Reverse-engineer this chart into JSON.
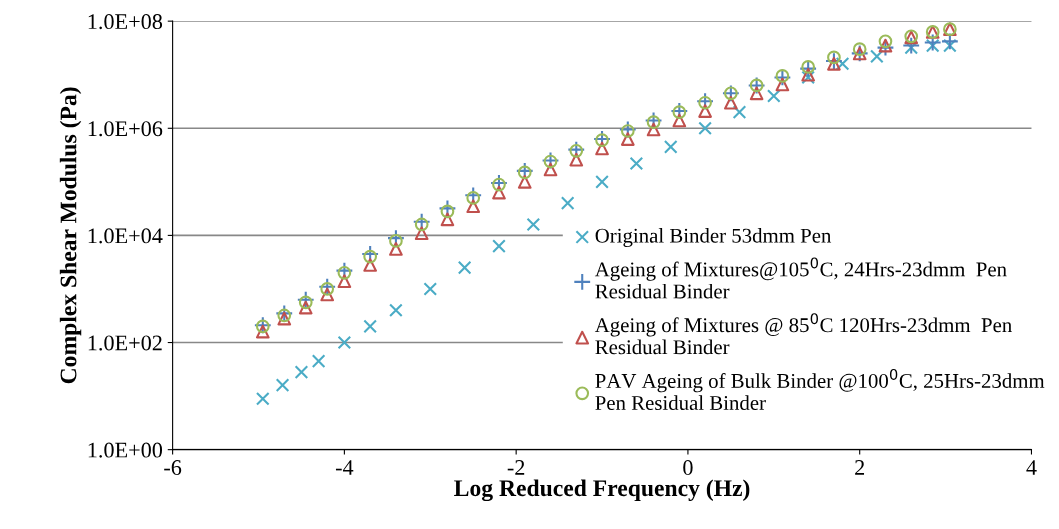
{
  "chart_data": {
    "type": "scatter",
    "xlabel": "Log Reduced Frequency (Hz)",
    "ylabel": "Complex Shear Modulus (Pa)",
    "log": "y",
    "grid": "y",
    "legend": "right",
    "xlim": [
      -6,
      4
    ],
    "xticks": [
      -6,
      -4,
      -2,
      0,
      2,
      4
    ],
    "ylim": [
      1,
      100000000
    ],
    "yticks": [
      {
        "value": 1,
        "label": "1.0E+00"
      },
      {
        "value": 100,
        "label": "1.0E+02"
      },
      {
        "value": 10000,
        "label": "1.0E+04"
      },
      {
        "value": 1000000,
        "label": "1.0E+06"
      },
      {
        "value": 100000000,
        "label": "1.0E+08"
      }
    ],
    "series": [
      {
        "name": "Original Binder 53dmm Pen",
        "color": "#4bacc6",
        "marker": "cross",
        "x": [
          -4.95,
          -4.72,
          -4.5,
          -4.3,
          -4.0,
          -3.7,
          -3.4,
          -3.0,
          -2.6,
          -2.2,
          -1.8,
          -1.4,
          -1.0,
          -0.6,
          -0.2,
          0.2,
          0.6,
          1.0,
          1.4,
          1.8,
          2.2,
          2.6,
          2.85,
          3.05
        ],
        "values": [
          8.9,
          16,
          28,
          45,
          100,
          200,
          400,
          1000,
          2500,
          6300,
          16000,
          40000,
          100000,
          220000,
          450000,
          1000000,
          2000000,
          4000000,
          8900000,
          16000000,
          22000000,
          32000000,
          35000000,
          35000000
        ]
      },
      {
        "name": "Ageing of Mixtures@105$^{0}$C, 24Hrs-23dmm  Pen\nResidual Binder",
        "color": "#4f81bd",
        "marker": "plus",
        "x": [
          -4.95,
          -4.7,
          -4.45,
          -4.2,
          -4.0,
          -3.7,
          -3.4,
          -3.1,
          -2.8,
          -2.5,
          -2.2,
          -1.9,
          -1.6,
          -1.3,
          -1.0,
          -0.7,
          -0.4,
          -0.1,
          0.2,
          0.5,
          0.8,
          1.1,
          1.4,
          1.7,
          2.0,
          2.3,
          2.6,
          2.85,
          3.05
        ],
        "values": [
          210,
          350,
          630,
          1100,
          2200,
          4500,
          8900,
          18000,
          32000,
          56000,
          95000,
          160000,
          250000,
          400000,
          630000,
          950000,
          1400000,
          2100000,
          3200000,
          4500000,
          6300000,
          8900000,
          13000000,
          18000000,
          25000000,
          32000000,
          35000000,
          40000000,
          42000000
        ]
      },
      {
        "name": "Ageing of Mixtures @ 85$^{0}$C 120Hrs-23dmm  Pen\nResidual Binder",
        "color": "#c0504d",
        "marker": "triangle",
        "x": [
          -4.95,
          -4.7,
          -4.45,
          -4.2,
          -4.0,
          -3.7,
          -3.4,
          -3.1,
          -2.8,
          -2.5,
          -2.2,
          -1.9,
          -1.6,
          -1.3,
          -1.0,
          -0.7,
          -0.4,
          -0.1,
          0.2,
          0.5,
          0.8,
          1.1,
          1.4,
          1.7,
          2.0,
          2.3,
          2.6,
          2.85,
          3.05
        ],
        "values": [
          160,
          280,
          450,
          790,
          1400,
          2800,
          5600,
          11000,
          20000,
          35000,
          63000,
          100000,
          170000,
          260000,
          420000,
          630000,
          950000,
          1400000,
          2100000,
          3000000,
          4500000,
          6600000,
          10000000,
          16000000,
          25000000,
          35000000,
          50000000,
          63000000,
          71000000
        ]
      },
      {
        "name": "PAV Ageing of Bulk Binder @100$^{0}$C, 25Hrs-23dmm\nPen Residual Binder",
        "color": "#9bbb59",
        "marker": "circle",
        "x": [
          -4.95,
          -4.7,
          -4.45,
          -4.2,
          -4.0,
          -3.7,
          -3.4,
          -3.1,
          -2.8,
          -2.5,
          -2.2,
          -1.9,
          -1.6,
          -1.3,
          -1.0,
          -0.7,
          -0.4,
          -0.1,
          0.2,
          0.5,
          0.8,
          1.1,
          1.4,
          1.7,
          2.0,
          2.3,
          2.6,
          2.85,
          3.05
        ],
        "values": [
          200,
          320,
          560,
          1000,
          2000,
          4000,
          7900,
          16000,
          28000,
          50000,
          89000,
          150000,
          240000,
          380000,
          600000,
          890000,
          1300000,
          2000000,
          3000000,
          4500000,
          6300000,
          9500000,
          14000000,
          21000000,
          30000000,
          42000000,
          52000000,
          63000000,
          71000000
        ]
      }
    ]
  }
}
